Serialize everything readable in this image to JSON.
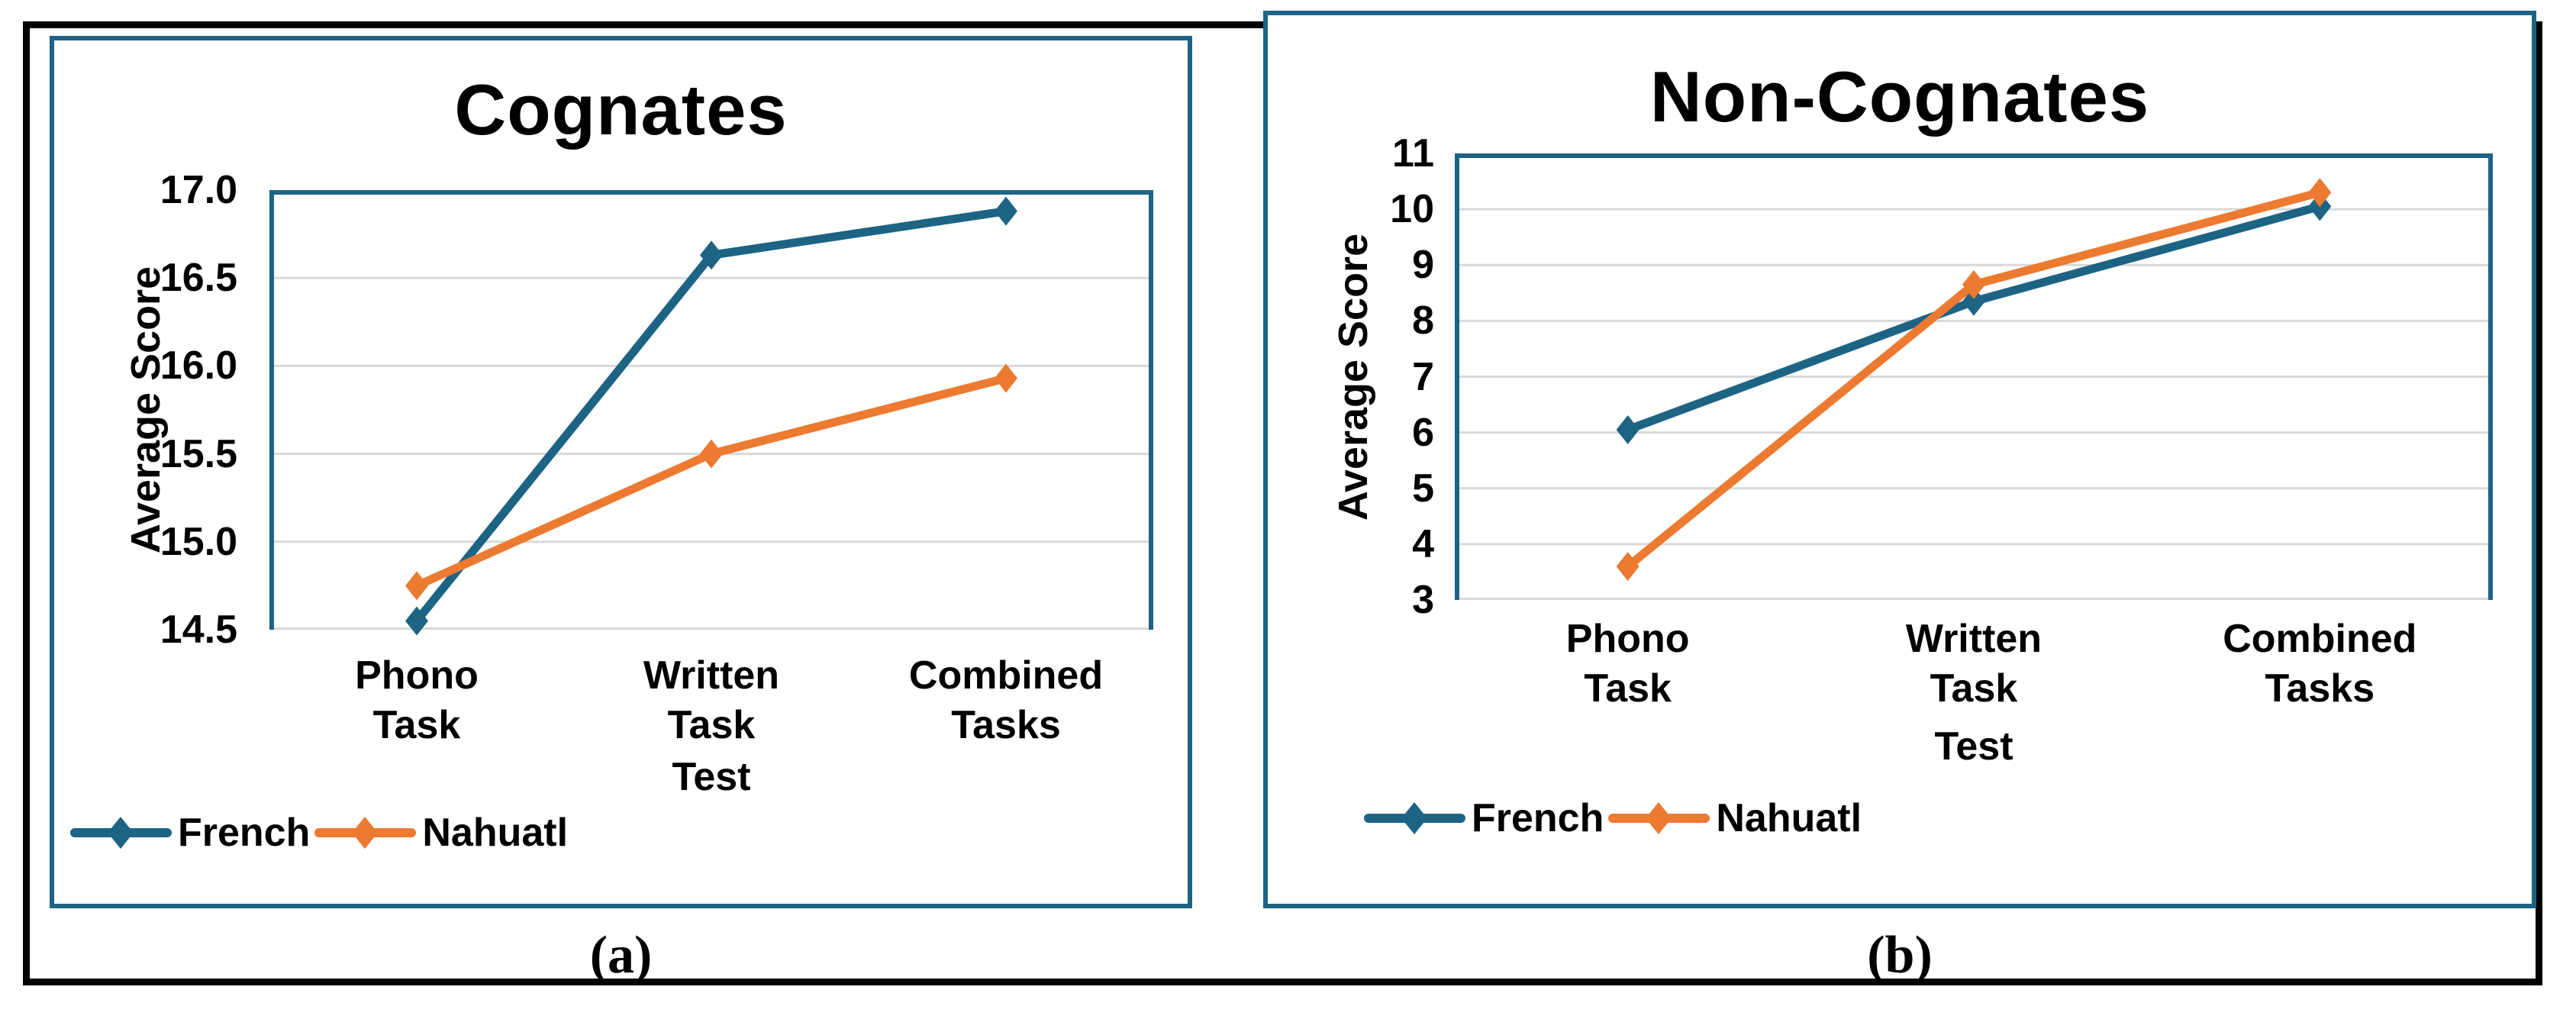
{
  "figure": {
    "sublabel_a": "(a)",
    "sublabel_b": "(b)"
  },
  "colors": {
    "french": "#1D6484",
    "nahuatl": "#EC7A30",
    "panel_border": "#1D6484",
    "plot_border": "#1D6484",
    "gridline": "#D9D9D9",
    "text": "#000000"
  },
  "chart_data": [
    {
      "type": "line",
      "title": "Cognates",
      "xlabel": "Test",
      "ylabel": "Average Score",
      "categories": [
        "Phono\nTask",
        "Written\nTask",
        "Combined\nTasks"
      ],
      "yticks": [
        "17.0",
        "16.5",
        "16.0",
        "15.5",
        "15.0",
        "14.5"
      ],
      "ylim": [
        14.5,
        17.0
      ],
      "grid": true,
      "legend_position": "bottom-left",
      "series": [
        {
          "name": "French",
          "color_key": "french",
          "values": [
            14.55,
            16.63,
            16.88
          ]
        },
        {
          "name": "Nahuatl",
          "color_key": "nahuatl",
          "values": [
            14.75,
            15.5,
            15.93
          ]
        }
      ]
    },
    {
      "type": "line",
      "title": "Non-Cognates",
      "xlabel": "Test",
      "ylabel": "Average Score",
      "categories": [
        "Phono\nTask",
        "Written\nTask",
        "Combined\nTasks"
      ],
      "yticks": [
        "11",
        "10",
        "9",
        "8",
        "7",
        "6",
        "5",
        "4",
        "3"
      ],
      "ylim": [
        3,
        11
      ],
      "grid": true,
      "legend_position": "bottom-left",
      "series": [
        {
          "name": "French",
          "color_key": "french",
          "values": [
            6.05,
            8.35,
            10.05
          ]
        },
        {
          "name": "Nahuatl",
          "color_key": "nahuatl",
          "values": [
            3.6,
            8.65,
            10.3
          ]
        }
      ]
    }
  ]
}
